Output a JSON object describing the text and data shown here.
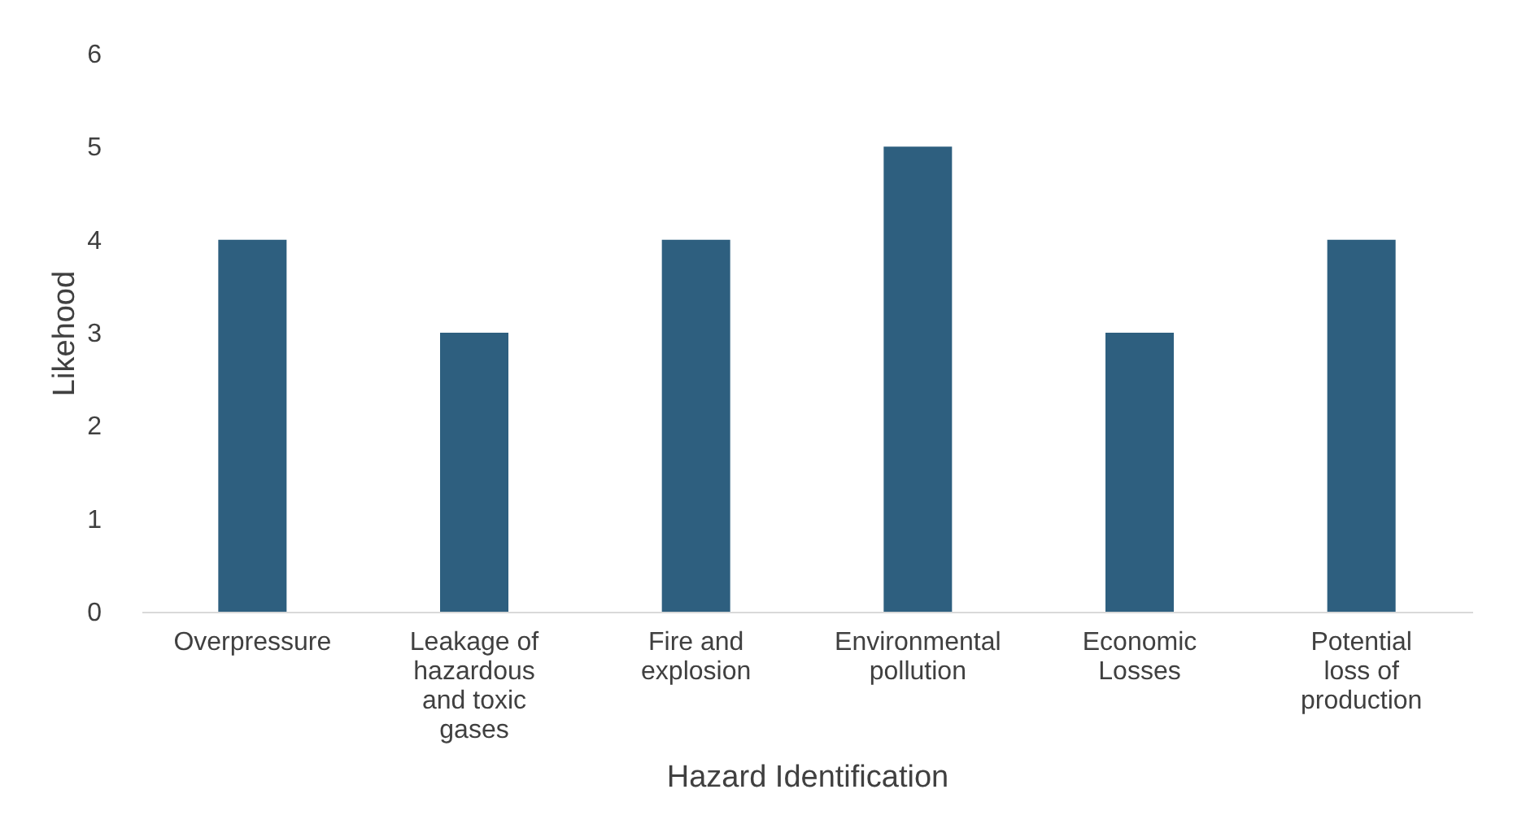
{
  "chart_data": {
    "type": "bar",
    "xlabel": "Hazard Identification",
    "ylabel": "Likehood",
    "categories": [
      "Overpressure",
      "Leakage of hazardous and toxic gases",
      "Fire and explosion",
      "Environmental pollution",
      "Economic Losses",
      "Potential loss of production"
    ],
    "values": [
      4,
      3,
      4,
      5,
      3,
      4
    ],
    "color": "#2e5f7f",
    "ylim": [
      0,
      6
    ],
    "yticks": [
      0,
      1,
      2,
      3,
      4,
      5,
      6
    ],
    "grid": false
  }
}
